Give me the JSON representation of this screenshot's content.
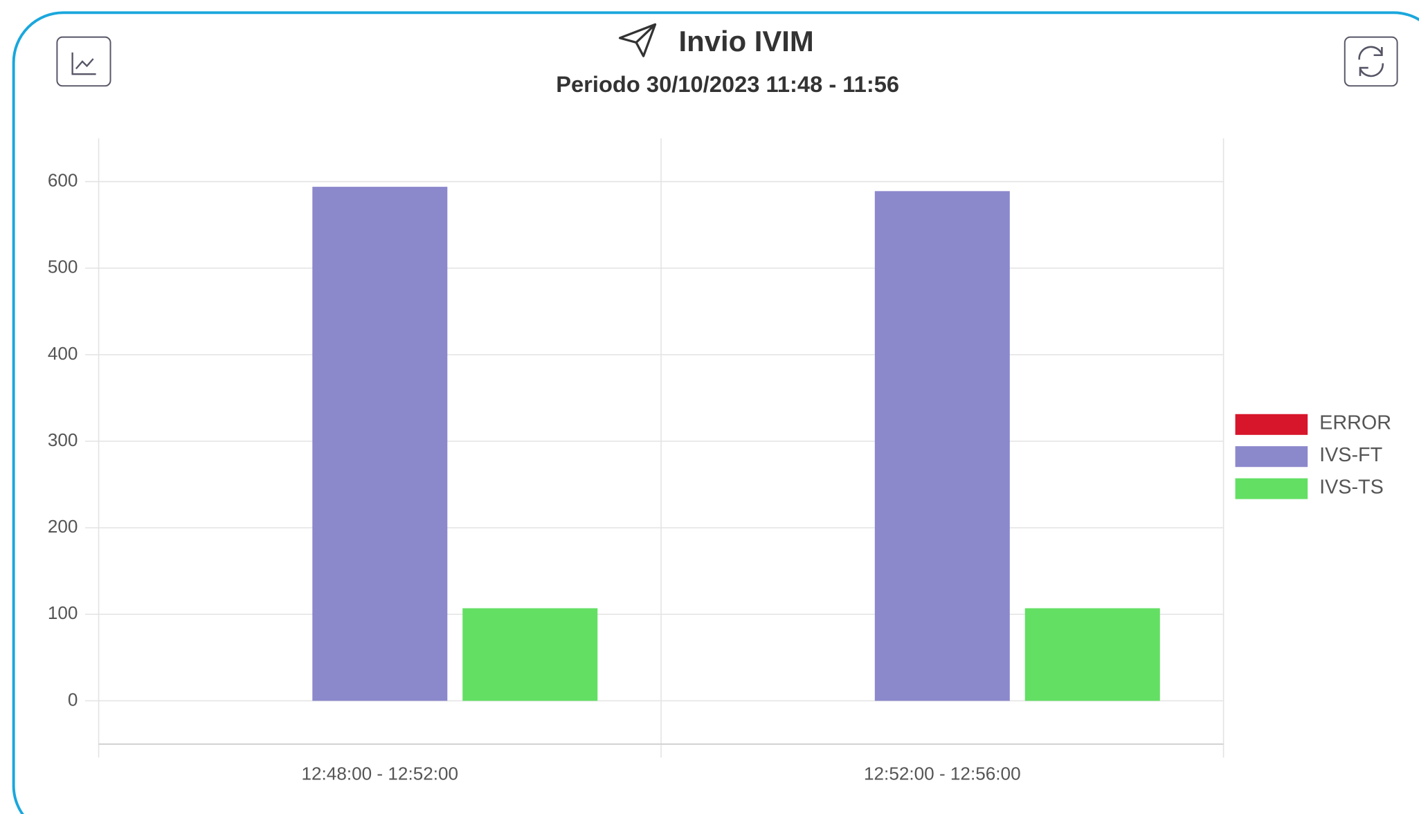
{
  "chart_data": {
    "type": "bar",
    "title": "Invio IVIM",
    "subtitle": "Periodo 30/10/2023 11:48 - 11:56",
    "categories": [
      "12:48:00 - 12:52:00",
      "12:52:00 - 12:56:00"
    ],
    "series": [
      {
        "name": "ERROR",
        "color": "#d7152b",
        "values": [
          0,
          0
        ]
      },
      {
        "name": "IVS-FT",
        "color": "#8b88cc",
        "values": [
          594,
          589
        ]
      },
      {
        "name": "IVS-TS",
        "color": "#63df63",
        "values": [
          107,
          107
        ]
      }
    ],
    "ylim": [
      -50,
      650
    ],
    "yticks": [
      0,
      100,
      200,
      300,
      400,
      500,
      600
    ],
    "grid": true,
    "legend": "right"
  }
}
